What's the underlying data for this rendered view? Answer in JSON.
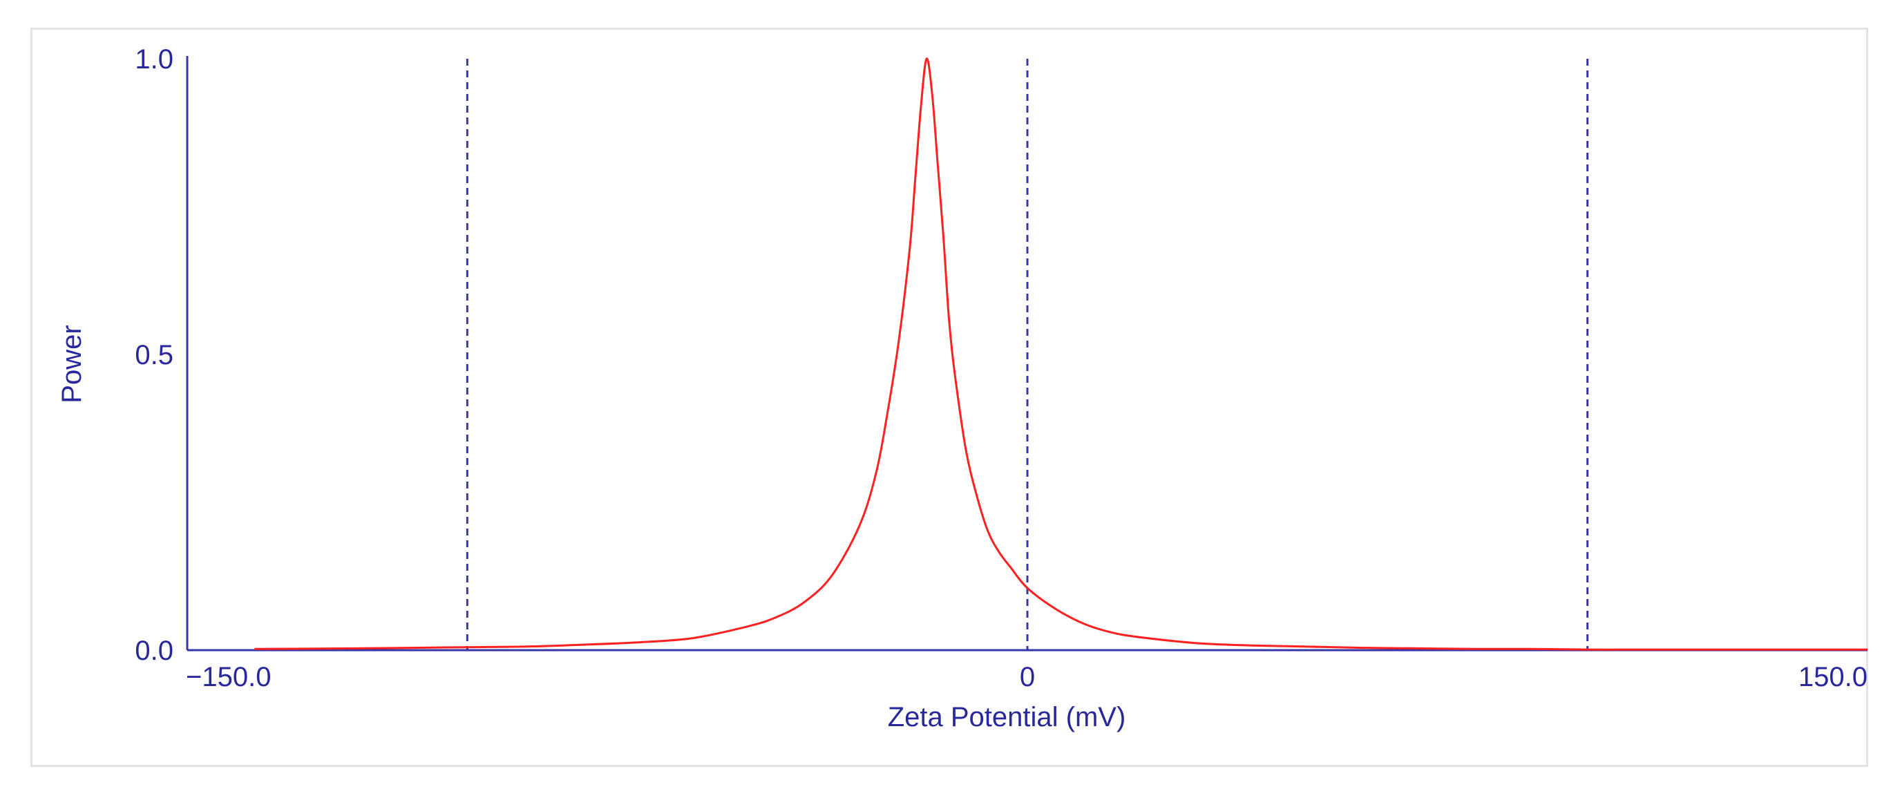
{
  "chart_data": {
    "type": "line",
    "title": "",
    "xlabel": "Zeta Potential (mV)",
    "ylabel": "Power",
    "xlim": [
      -150,
      150
    ],
    "ylim": [
      0,
      1
    ],
    "x_ticks": [
      {
        "value": -150,
        "label": "−150.0"
      },
      {
        "value": 0,
        "label": "0"
      },
      {
        "value": 150,
        "label": "150.0"
      }
    ],
    "y_ticks": [
      {
        "value": 0,
        "label": "0.0"
      },
      {
        "value": 0.5,
        "label": "0.5"
      },
      {
        "value": 1,
        "label": "1.0"
      }
    ],
    "reference_lines_x": [
      -100,
      0,
      100
    ],
    "grid": false,
    "legend": "none",
    "series": [
      {
        "color": "#ff2020",
        "x": [
          -138,
          -120,
          -110,
          -100,
          -90,
          -80,
          -70,
          -60,
          -50,
          -45,
          -40,
          -35,
          -30,
          -27,
          -25,
          -23,
          -21,
          -20,
          -19,
          -18,
          -17,
          -16,
          -15,
          -14,
          -13,
          -11,
          -9,
          -7,
          -5,
          -3,
          0,
          5,
          10,
          15,
          20,
          30,
          40,
          50,
          60,
          70,
          80,
          90,
          100,
          110,
          120,
          150
        ],
        "y": [
          0.002,
          0.003,
          0.004,
          0.005,
          0.006,
          0.009,
          0.013,
          0.02,
          0.04,
          0.055,
          0.08,
          0.125,
          0.21,
          0.3,
          0.4,
          0.52,
          0.68,
          0.8,
          0.92,
          1.0,
          0.94,
          0.82,
          0.7,
          0.56,
          0.47,
          0.34,
          0.26,
          0.2,
          0.165,
          0.14,
          0.105,
          0.07,
          0.045,
          0.03,
          0.022,
          0.012,
          0.008,
          0.006,
          0.004,
          0.003,
          0.002,
          0.002,
          0.001,
          0.001,
          0.001,
          0.001
        ]
      }
    ],
    "colors": {
      "axis": "#3636a8",
      "reference_line": "#3636a8",
      "curve": "#ff2020",
      "text": "#28289c"
    }
  }
}
